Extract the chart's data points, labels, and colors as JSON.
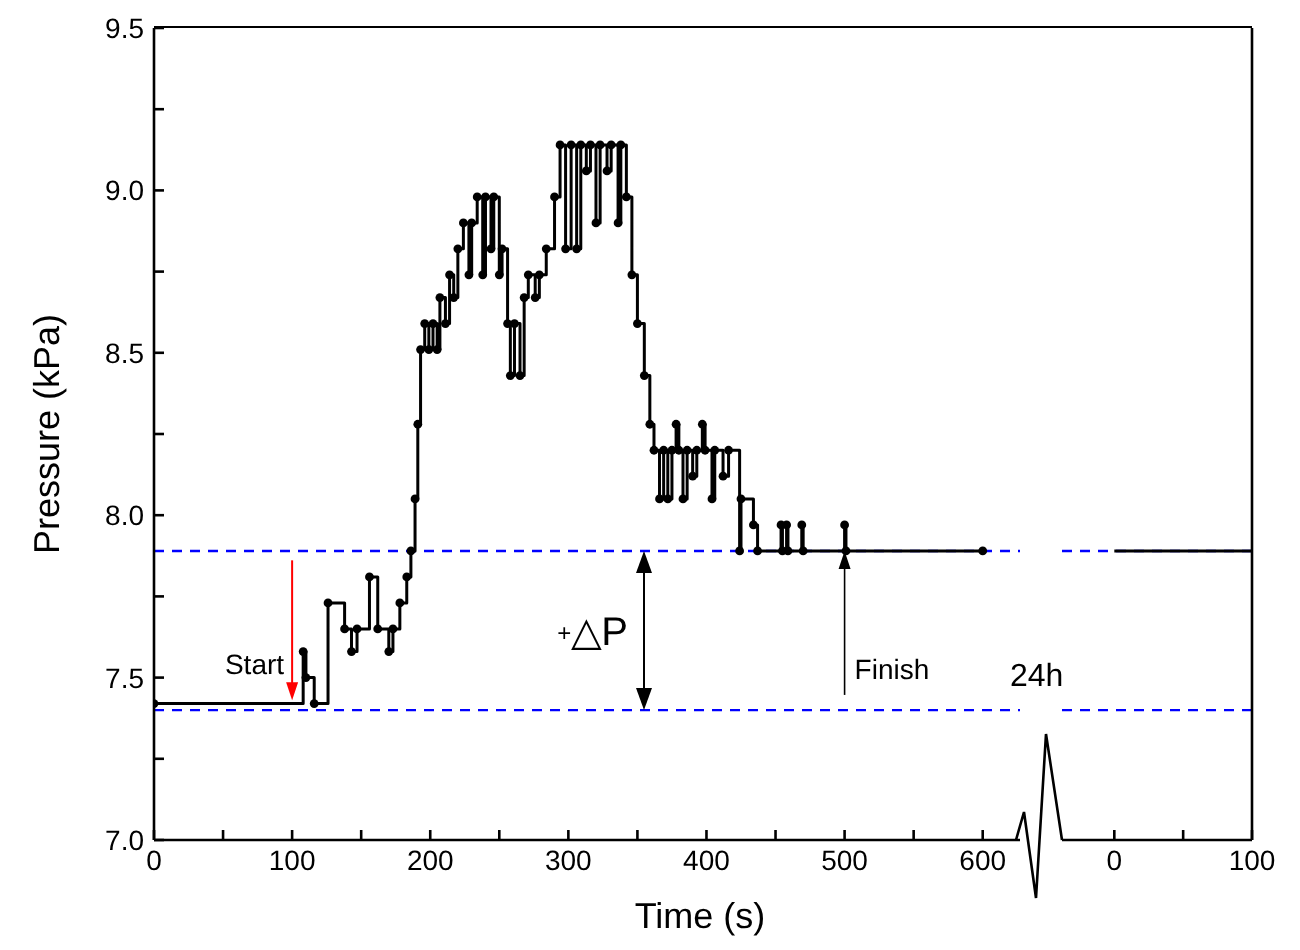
{
  "chart_data": [
    {
      "type": "step",
      "xlabel": "Time (s)",
      "ylabel": "Pressure (kPa)",
      "color": "#000000",
      "marker": "circle",
      "line_style": "solid",
      "x": [
        0,
        108,
        110,
        116,
        126,
        138,
        143,
        147,
        156,
        162,
        170,
        173,
        178,
        183,
        186,
        189,
        191,
        193,
        196,
        199,
        202,
        205,
        207,
        211,
        214,
        217,
        220,
        224,
        228,
        230,
        234,
        238,
        240,
        244,
        246,
        250,
        252,
        256,
        258,
        261,
        265,
        268,
        271,
        276,
        279,
        284,
        290,
        294,
        298,
        302,
        306,
        309,
        313,
        316,
        320,
        323,
        328,
        331,
        336,
        338,
        342,
        346,
        350,
        355,
        359,
        362,
        366,
        369,
        372,
        375,
        378,
        380,
        383,
        386,
        390,
        393,
        397,
        399,
        404,
        406,
        412,
        416,
        424,
        425,
        434,
        437,
        454,
        455,
        458,
        459,
        469,
        470,
        500,
        501,
        600
      ],
      "values": [
        7.42,
        7.58,
        7.5,
        7.42,
        7.73,
        7.65,
        7.58,
        7.65,
        7.81,
        7.65,
        7.58,
        7.65,
        7.73,
        7.81,
        7.89,
        8.05,
        8.28,
        8.51,
        8.59,
        8.51,
        8.59,
        8.51,
        8.67,
        8.59,
        8.74,
        8.67,
        8.82,
        8.9,
        8.74,
        8.9,
        8.98,
        8.74,
        8.98,
        8.82,
        8.98,
        8.74,
        8.82,
        8.59,
        8.43,
        8.59,
        8.43,
        8.67,
        8.74,
        8.67,
        8.74,
        8.82,
        8.98,
        9.14,
        8.82,
        9.14,
        8.82,
        9.14,
        9.06,
        9.14,
        8.9,
        9.14,
        9.06,
        9.14,
        8.9,
        9.14,
        8.98,
        8.74,
        8.59,
        8.43,
        8.28,
        8.2,
        8.05,
        8.2,
        8.05,
        8.2,
        8.28,
        8.2,
        8.05,
        8.2,
        8.12,
        8.2,
        8.28,
        8.2,
        8.05,
        8.2,
        8.12,
        8.2,
        7.89,
        8.05,
        7.97,
        7.89,
        7.97,
        7.89,
        7.97,
        7.89,
        7.97,
        7.89,
        7.97,
        7.89,
        7.89
      ],
      "xlim": [
        0,
        627
      ],
      "xticks": [
        0,
        {
          "value": 50,
          "label": null
        },
        100,
        {
          "value": 150,
          "label": null
        },
        200,
        {
          "value": 250,
          "label": null
        },
        300,
        {
          "value": 350,
          "label": null
        },
        400,
        {
          "value": 450,
          "label": null
        },
        500,
        {
          "value": 550,
          "label": null
        },
        600
      ],
      "ylim": [
        7,
        9.5
      ],
      "yticks": [
        {
          "value": 7,
          "label": "7.0"
        },
        {
          "value": 7.25,
          "label": null
        },
        7.5,
        {
          "value": 7.75,
          "label": null
        },
        {
          "value": 8,
          "label": "8.0"
        },
        {
          "value": 8.25,
          "label": null
        },
        8.5,
        {
          "value": 8.75,
          "label": null
        },
        {
          "value": 9,
          "label": "9.0"
        },
        {
          "value": 9.25,
          "label": null
        },
        9.5
      ],
      "ref_lines": [
        {
          "axis": "y",
          "value": 7.89,
          "color": "#0000ff",
          "line_style": "dashed"
        },
        {
          "axis": "y",
          "value": 7.4,
          "color": "#0000ff",
          "line_style": "dashed"
        }
      ],
      "annotations": [
        {
          "text": "Start",
          "x": 100,
          "y": 7.43
        },
        "$^{+}$△P",
        {
          "text": "Finish",
          "x": 500,
          "y": 7.89
        },
        "24h"
      ]
    },
    {
      "type": "step",
      "color": "#000000",
      "line_style": "solid",
      "x": [
        0,
        100
      ],
      "values": [
        7.89,
        7.89
      ],
      "xlim": [
        -38,
        100
      ],
      "xticks": [
        0,
        {
          "value": 50,
          "label": null
        },
        100
      ],
      "ylim": [
        7,
        9.5
      ],
      "tick_labels": "x",
      "ref_lines": [
        {
          "axis": "y",
          "value": 7.89,
          "color": "#0000ff",
          "line_style": "dashed"
        },
        {
          "axis": "y",
          "value": 7.4,
          "color": "#0000ff",
          "line_style": "dashed"
        }
      ]
    }
  ]
}
